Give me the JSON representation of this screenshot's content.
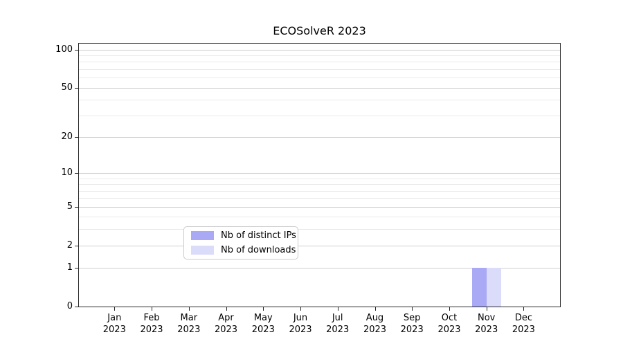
{
  "chart_data": {
    "type": "bar",
    "title": "ECOSolveR 2023",
    "categories": [
      "Jan",
      "Feb",
      "Mar",
      "Apr",
      "May",
      "Jun",
      "Jul",
      "Aug",
      "Sep",
      "Oct",
      "Nov",
      "Dec"
    ],
    "x_year_label": "2023",
    "series": [
      {
        "name": "Nb of distinct IPs",
        "color": "#a9a9f6",
        "values": [
          0,
          0,
          0,
          0,
          0,
          0,
          0,
          0,
          0,
          0,
          1,
          0
        ]
      },
      {
        "name": "Nb of downloads",
        "color": "#dbdbfa",
        "values": [
          0,
          0,
          0,
          0,
          0,
          0,
          0,
          0,
          0,
          0,
          1,
          0
        ]
      }
    ],
    "xlabel": "",
    "ylabel": "",
    "yscale": "log1p",
    "ylim": [
      0,
      105
    ],
    "y_ticks": [
      0,
      1,
      2,
      5,
      10,
      20,
      50,
      100
    ],
    "y_minor_ticks": [
      3,
      4,
      6,
      7,
      8,
      9,
      30,
      40,
      60,
      70,
      80,
      90
    ],
    "grid": "horizontal major and minor",
    "legend_position": "lower center"
  },
  "colors": {
    "background": "#ffffff",
    "spine": "#262626",
    "grid_major": "#cecece",
    "grid_minor": "#eaeaea",
    "legend_border": "#cbcbcb",
    "text": "#000000",
    "bar_distinct_ips": "#a9a9f6",
    "bar_downloads": "#dbdbfa"
  }
}
